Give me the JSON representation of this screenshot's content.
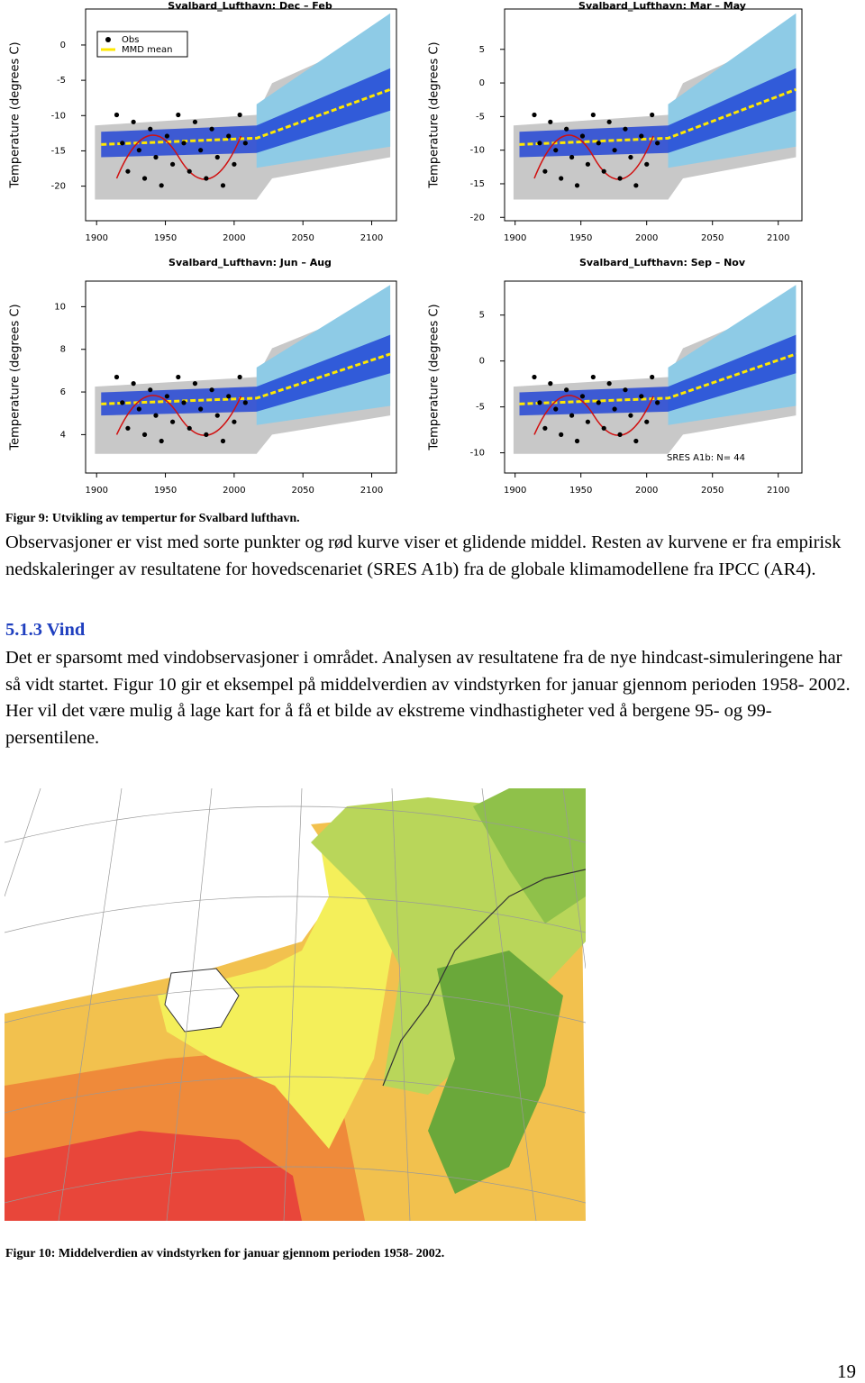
{
  "figure9": {
    "panels": [
      {
        "title": "Svalbard_Lufthavn: Dec – Feb",
        "ylabel": "Temperature (degrees C)",
        "xlim": [
          1892,
          2118
        ],
        "xticks": [
          1900,
          1950,
          2000,
          2050,
          2100
        ],
        "ylim": [
          -24.9,
          5.1
        ],
        "yticks": [
          0,
          -5,
          -10,
          -15,
          -20
        ]
      },
      {
        "title": "Svalbard_Lufthavn: Mar – May",
        "ylabel": "Temperature (degrees C)",
        "xlim": [
          1892,
          2118
        ],
        "xticks": [
          1900,
          1950,
          2000,
          2050,
          2100
        ],
        "ylim": [
          -20.5,
          11
        ],
        "yticks": [
          5,
          0,
          -5,
          -10,
          -15,
          -20
        ]
      },
      {
        "title": "Svalbard_Lufthavn: Jun – Aug",
        "ylabel": "Temperature (degrees C)",
        "xlim": [
          1892,
          2118
        ],
        "xticks": [
          1900,
          1950,
          2000,
          2050,
          2100
        ],
        "ylim": [
          2.2,
          11.2
        ],
        "yticks": [
          10,
          8,
          6,
          4
        ]
      },
      {
        "title": "Svalbard_Lufthavn: Sep – Nov",
        "ylabel": "Temperature (degrees C)",
        "xlim": [
          1892,
          2118
        ],
        "xticks": [
          1900,
          1950,
          2000,
          2050,
          2100
        ],
        "ylim": [
          -12.2,
          8.7
        ],
        "yticks": [
          5,
          0,
          -5,
          -10
        ]
      }
    ],
    "legend": [
      "Obs",
      "MMD mean"
    ],
    "annotation": "SRES A1b: N= 44",
    "caption": "Figur 9: Utvikling av tempertur for Svalbard lufthavn."
  },
  "body": {
    "paragraph1": "Observasjoner er vist med sorte punkter og rød kurve viser et glidende middel. Resten av kurvene er fra empirisk nedskaleringer av resultatene for hovedscenariet (SRES A1b) fra de globale klimamodellene fra IPCC (AR4).",
    "heading": "5.1.3 Vind",
    "paragraph2": "Det er sparsomt med vindobservasjoner i området. Analysen av resultatene fra de nye hindcast-simuleringene har så vidt startet. Figur 10 gir et eksempel på middelverdien av vindstyrken for januar gjennom perioden 1958- 2002. Her vil det være mulig å lage kart for å få et bilde av ekstreme vindhastigheter ved å bergene 95- og 99-persentilene."
  },
  "figure10": {
    "caption": "Figur 10: Middelverdien av vindstyrken for januar gjennom perioden 1958- 2002."
  },
  "page_number": "19"
}
